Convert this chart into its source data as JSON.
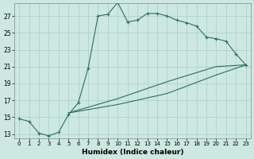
{
  "xlabel": "Humidex (Indice chaleur)",
  "bg_color": "#cce8e0",
  "grid_color": "#aacccc",
  "line_color": "#2a7060",
  "xlim": [
    -0.5,
    23.5
  ],
  "ylim": [
    12.5,
    28.5
  ],
  "yticks": [
    13,
    15,
    17,
    19,
    21,
    23,
    25,
    27
  ],
  "xticks": [
    0,
    1,
    2,
    3,
    4,
    5,
    6,
    7,
    8,
    9,
    10,
    11,
    12,
    13,
    14,
    15,
    16,
    17,
    18,
    19,
    20,
    21,
    22,
    23
  ],
  "line1_x": [
    0,
    1,
    2,
    3,
    4,
    5,
    6,
    7,
    8,
    9,
    10,
    11,
    12,
    13,
    14,
    15,
    16,
    17,
    18,
    19,
    20,
    21,
    22,
    23
  ],
  "line1_y": [
    14.8,
    14.5,
    13.1,
    12.8,
    13.2,
    15.3,
    16.7,
    20.8,
    27.0,
    27.2,
    28.6,
    26.3,
    26.5,
    27.3,
    27.3,
    27.0,
    26.5,
    26.2,
    25.8,
    24.5,
    24.3,
    24.0,
    22.5,
    21.2
  ],
  "line2_x": [
    5,
    23
  ],
  "line2_y": [
    15.5,
    21.2
  ],
  "line3_x": [
    5,
    23
  ],
  "line3_y": [
    15.5,
    21.2
  ],
  "line2_mid_x": [
    5,
    10,
    15,
    20,
    23
  ],
  "line2_mid_y": [
    15.5,
    16.5,
    17.8,
    20.0,
    21.2
  ],
  "line3_mid_x": [
    5,
    10,
    15,
    20,
    23
  ],
  "line3_mid_y": [
    15.5,
    17.2,
    19.2,
    21.0,
    21.2
  ]
}
